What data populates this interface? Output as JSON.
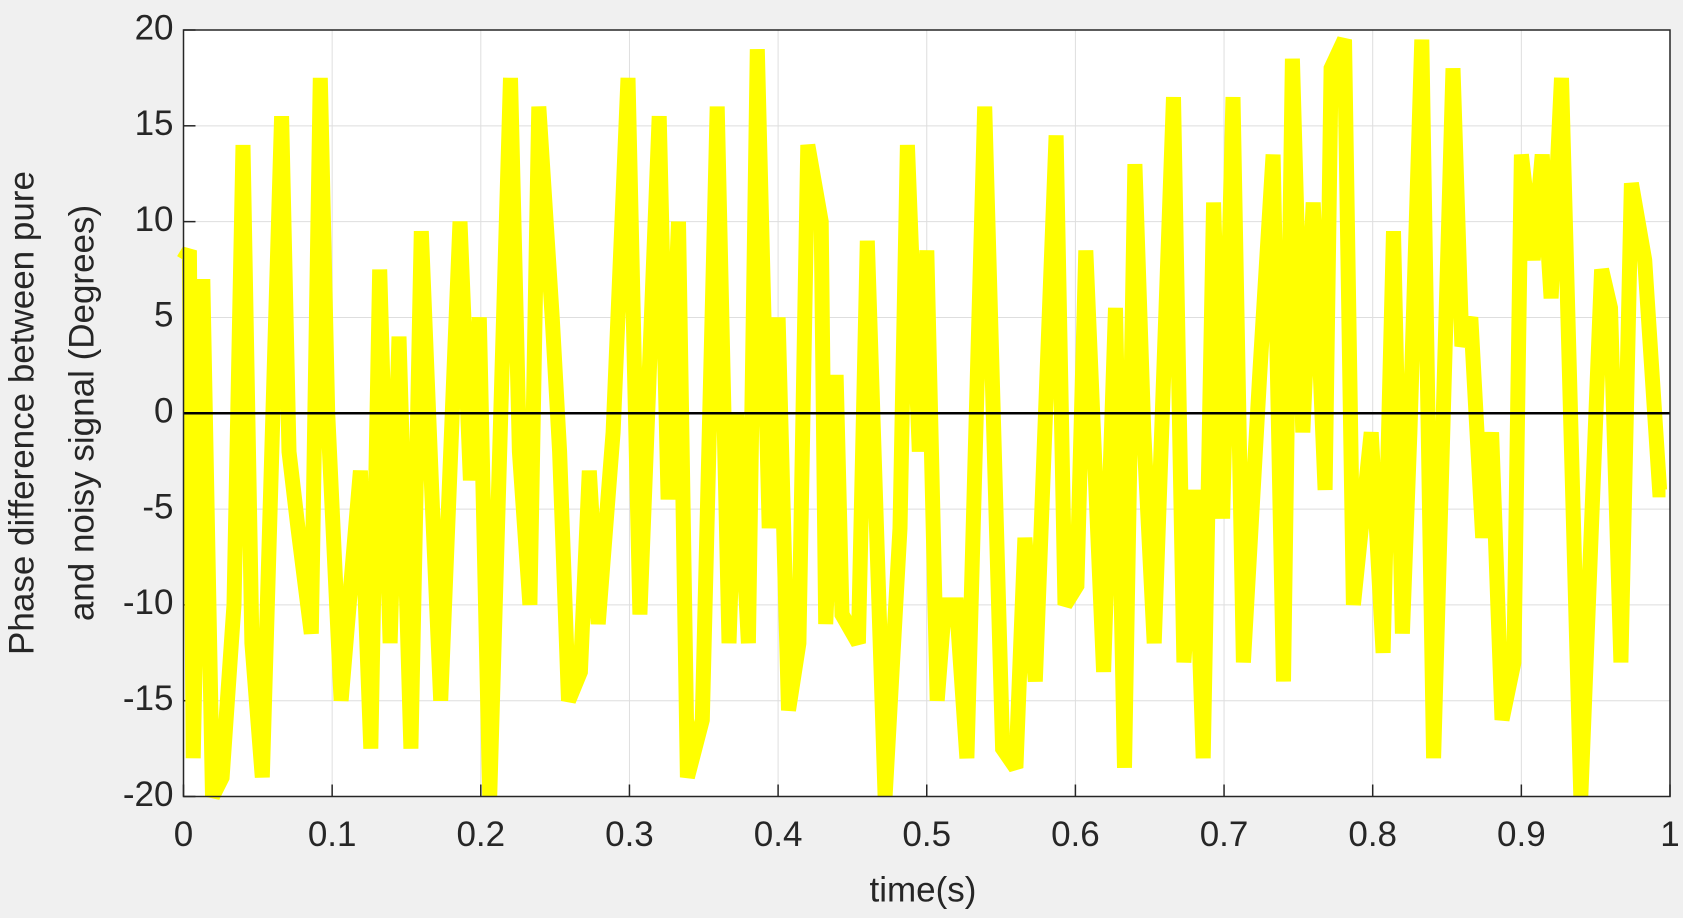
{
  "chart_data": {
    "type": "line",
    "xlabel": "time(s)",
    "ylabel": [
      "Phase difference between pure",
      "and noisy signal (Degrees)"
    ],
    "x": [
      0,
      0.004,
      0.0065,
      0.013,
      0.0195,
      0.026,
      0.034,
      0.04,
      0.046,
      0.053,
      0.066,
      0.071,
      0.077,
      0.086,
      0.092,
      0.097,
      0.106,
      0.119,
      0.126,
      0.132,
      0.139,
      0.145,
      0.153,
      0.16,
      0.167,
      0.173,
      0.186,
      0.193,
      0.199,
      0.206,
      0.22,
      0.226,
      0.233,
      0.239,
      0.248,
      0.253,
      0.259,
      0.267,
      0.273,
      0.279,
      0.289,
      0.299,
      0.307,
      0.32,
      0.326,
      0.333,
      0.339,
      0.349,
      0.359,
      0.367,
      0.372,
      0.38,
      0.386,
      0.394,
      0.4,
      0.407,
      0.414,
      0.42,
      0.429,
      0.432,
      0.439,
      0.443,
      0.454,
      0.46,
      0.472,
      0.482,
      0.487,
      0.495,
      0.5,
      0.507,
      0.512,
      0.52,
      0.527,
      0.539,
      0.551,
      0.56,
      0.566,
      0.573,
      0.587,
      0.593,
      0.601,
      0.607,
      0.619,
      0.627,
      0.633,
      0.64,
      0.646,
      0.653,
      0.666,
      0.673,
      0.68,
      0.686,
      0.693,
      0.699,
      0.706,
      0.713,
      0.724,
      0.733,
      0.74,
      0.746,
      0.753,
      0.76,
      0.768,
      0.772,
      0.781,
      0.787,
      0.799,
      0.807,
      0.814,
      0.82,
      0.825,
      0.833,
      0.841,
      0.854,
      0.86,
      0.866,
      0.874,
      0.88,
      0.887,
      0.895,
      0.9,
      0.908,
      0.914,
      0.92,
      0.927,
      0.94,
      0.954,
      0.96,
      0.967,
      0.974,
      0.983,
      0.993,
      0.997
    ],
    "values": [
      8,
      8.5,
      -18,
      7,
      -20,
      -19,
      -10,
      14,
      -12,
      -19,
      15.5,
      -2,
      -6,
      -11.5,
      17.5,
      0,
      -15,
      -3,
      -17.5,
      7.5,
      -12,
      4,
      -17.5,
      9.5,
      -4,
      -15,
      10,
      -3.5,
      5,
      -20,
      17.5,
      -2,
      -10,
      16,
      5,
      -2,
      -15,
      -13.5,
      -3,
      -11,
      -1,
      17.5,
      -10.5,
      15.5,
      -4.5,
      10,
      -19,
      -16,
      16,
      -12,
      0,
      -12,
      19,
      -6,
      5,
      -15.5,
      -12,
      14,
      10,
      -11,
      2,
      -10.5,
      -12,
      9,
      -20,
      -6,
      14,
      -2,
      8.5,
      -15,
      -10,
      -10,
      -18,
      16,
      -17.5,
      -18.5,
      -6.5,
      -14,
      14.5,
      -10,
      -9,
      8.5,
      -13.5,
      5.5,
      -18.5,
      13,
      -1,
      -12,
      16.5,
      -13,
      -4,
      -18,
      11,
      -5.5,
      16.5,
      -13,
      2,
      13.5,
      -14,
      18.5,
      -1,
      11,
      -4,
      18,
      19.5,
      -10,
      -1,
      -12.5,
      9.5,
      -11.5,
      -1,
      19.5,
      -18,
      18,
      3.5,
      5,
      -6.5,
      -1,
      -16,
      -13,
      13.5,
      8,
      13.5,
      6,
      17.5,
      -20,
      7.5,
      5.5,
      -13,
      12,
      8,
      -4,
      -4
    ],
    "color": "#ffff00",
    "reference_line": 0,
    "xlim": [
      0,
      1
    ],
    "xticks": [
      0,
      0.1,
      0.2,
      0.3,
      0.4,
      0.5,
      0.6,
      0.7,
      0.8,
      0.9,
      1
    ],
    "ylim": [
      -20,
      20
    ],
    "yticks": [
      -20,
      -15,
      -10,
      -5,
      0,
      5,
      10,
      15,
      20
    ],
    "grid": true
  }
}
